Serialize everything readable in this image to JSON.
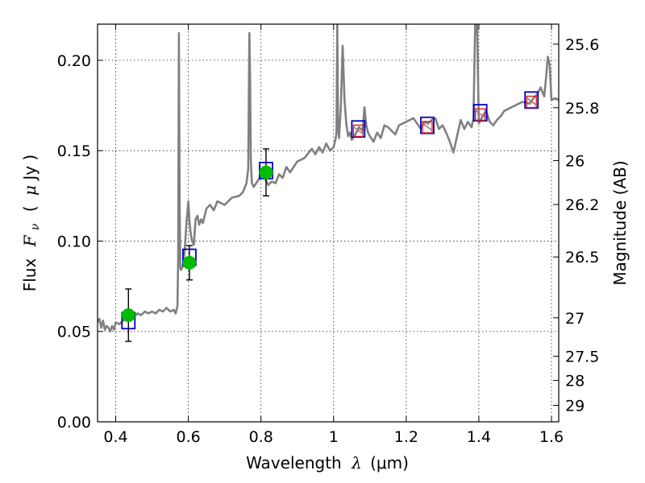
{
  "chart_data": {
    "type": "line",
    "x_axis": {
      "range": [
        0.35,
        1.62
      ],
      "ticks": [
        0.4,
        0.6,
        0.8,
        1.0,
        1.2,
        1.4,
        1.6
      ],
      "tick_labels": [
        "0.4",
        "0.6",
        "0.8",
        "1",
        "1.2",
        "1.4",
        "1.6"
      ],
      "label": "Wavelength",
      "label_math": "λ",
      "label_unit": "(μm)"
    },
    "y_axis": {
      "range": [
        0.0,
        0.22
      ],
      "ticks": [
        0.0,
        0.05,
        0.1,
        0.15,
        0.2
      ],
      "tick_labels": [
        "0.00",
        "0.05",
        "0.10",
        "0.15",
        "0.20"
      ],
      "label": "Flux",
      "label_math": "F",
      "label_math_sub": "ν",
      "label_unit_open": "(",
      "label_unit_math": "μ",
      "label_unit_rest": "Jy )"
    },
    "y2_axis": {
      "label": "Magnitude (AB)",
      "ticks": [
        25.6,
        25.8,
        26.0,
        26.2,
        26.5,
        27.0,
        27.5,
        28.0,
        29.0
      ],
      "tick_labels": [
        "25.6",
        "25.8",
        "26",
        "26.2",
        "26.5",
        "27",
        "27.5",
        "28",
        "29"
      ]
    },
    "grid": true,
    "series": [
      {
        "kind": "spectrum",
        "color": "#808080",
        "x": [
          0.35,
          0.355,
          0.36,
          0.365,
          0.37,
          0.375,
          0.38,
          0.385,
          0.39,
          0.395,
          0.4,
          0.41,
          0.42,
          0.43,
          0.44,
          0.45,
          0.46,
          0.47,
          0.48,
          0.49,
          0.5,
          0.51,
          0.52,
          0.53,
          0.54,
          0.55,
          0.56,
          0.565,
          0.57,
          0.572,
          0.574,
          0.576,
          0.578,
          0.58,
          0.585,
          0.59,
          0.595,
          0.6,
          0.603,
          0.606,
          0.61,
          0.615,
          0.62,
          0.625,
          0.63,
          0.635,
          0.64,
          0.65,
          0.66,
          0.67,
          0.68,
          0.69,
          0.7,
          0.72,
          0.74,
          0.75,
          0.76,
          0.765,
          0.768,
          0.77,
          0.772,
          0.775,
          0.78,
          0.79,
          0.8,
          0.81,
          0.82,
          0.83,
          0.84,
          0.85,
          0.86,
          0.87,
          0.88,
          0.9,
          0.92,
          0.94,
          0.95,
          0.96,
          0.97,
          0.98,
          0.99,
          1.0,
          1.005,
          1.008,
          1.01,
          1.012,
          1.015,
          1.02,
          1.025,
          1.03,
          1.035,
          1.04,
          1.045,
          1.05,
          1.06,
          1.07,
          1.08,
          1.085,
          1.09,
          1.095,
          1.1,
          1.11,
          1.12,
          1.13,
          1.14,
          1.15,
          1.16,
          1.17,
          1.18,
          1.2,
          1.22,
          1.24,
          1.25,
          1.26,
          1.27,
          1.28,
          1.29,
          1.3,
          1.31,
          1.32,
          1.33,
          1.34,
          1.35,
          1.36,
          1.37,
          1.38,
          1.385,
          1.39,
          1.395,
          1.4,
          1.41,
          1.42,
          1.43,
          1.44,
          1.45,
          1.46,
          1.47,
          1.48,
          1.5,
          1.52,
          1.54,
          1.55,
          1.56,
          1.57,
          1.58,
          1.585,
          1.59,
          1.595,
          1.6,
          1.61,
          1.62
        ],
        "y": [
          0.055,
          0.057,
          0.052,
          0.056,
          0.051,
          0.053,
          0.052,
          0.05,
          0.053,
          0.051,
          0.055,
          0.054,
          0.056,
          0.057,
          0.059,
          0.058,
          0.06,
          0.059,
          0.061,
          0.06,
          0.061,
          0.06,
          0.062,
          0.061,
          0.063,
          0.061,
          0.062,
          0.06,
          0.064,
          0.09,
          0.215,
          0.12,
          0.085,
          0.084,
          0.086,
          0.095,
          0.11,
          0.122,
          0.112,
          0.105,
          0.1,
          0.098,
          0.112,
          0.114,
          0.109,
          0.112,
          0.11,
          0.118,
          0.12,
          0.117,
          0.122,
          0.121,
          0.12,
          0.124,
          0.125,
          0.127,
          0.132,
          0.14,
          0.215,
          0.19,
          0.145,
          0.132,
          0.13,
          0.133,
          0.136,
          0.135,
          0.131,
          0.133,
          0.132,
          0.137,
          0.135,
          0.141,
          0.138,
          0.144,
          0.146,
          0.151,
          0.148,
          0.152,
          0.149,
          0.154,
          0.15,
          0.152,
          0.156,
          0.16,
          0.22,
          0.166,
          0.157,
          0.175,
          0.208,
          0.178,
          0.165,
          0.158,
          0.16,
          0.156,
          0.159,
          0.163,
          0.161,
          0.174,
          0.164,
          0.16,
          0.158,
          0.155,
          0.16,
          0.157,
          0.164,
          0.163,
          0.161,
          0.159,
          0.164,
          0.166,
          0.168,
          0.162,
          0.166,
          0.165,
          0.167,
          0.168,
          0.162,
          0.164,
          0.16,
          0.155,
          0.149,
          0.158,
          0.167,
          0.162,
          0.166,
          0.163,
          0.168,
          0.22,
          0.22,
          0.165,
          0.169,
          0.172,
          0.166,
          0.164,
          0.167,
          0.169,
          0.172,
          0.173,
          0.175,
          0.177,
          0.176,
          0.179,
          0.181,
          0.185,
          0.18,
          0.19,
          0.202,
          0.198,
          0.178,
          0.179,
          0.178
        ]
      },
      {
        "kind": "photometry",
        "color": "#00bb00",
        "x": [
          0.435,
          0.603,
          0.814
        ],
        "y": [
          0.059,
          0.088,
          0.138
        ],
        "yerr": [
          0.0145,
          0.0095,
          0.013
        ]
      },
      {
        "kind": "model_boxes",
        "color": "#0000cc",
        "x": [
          0.435,
          0.603,
          0.814,
          1.068,
          1.258,
          1.404,
          1.545
        ],
        "y": [
          0.056,
          0.091,
          0.139,
          0.162,
          0.164,
          0.171,
          0.178
        ]
      },
      {
        "kind": "red_boxes",
        "color": "#dd2222",
        "x": [
          1.068,
          1.258,
          1.404,
          1.545
        ],
        "y": [
          0.161,
          0.163,
          0.17,
          0.177
        ]
      }
    ]
  }
}
